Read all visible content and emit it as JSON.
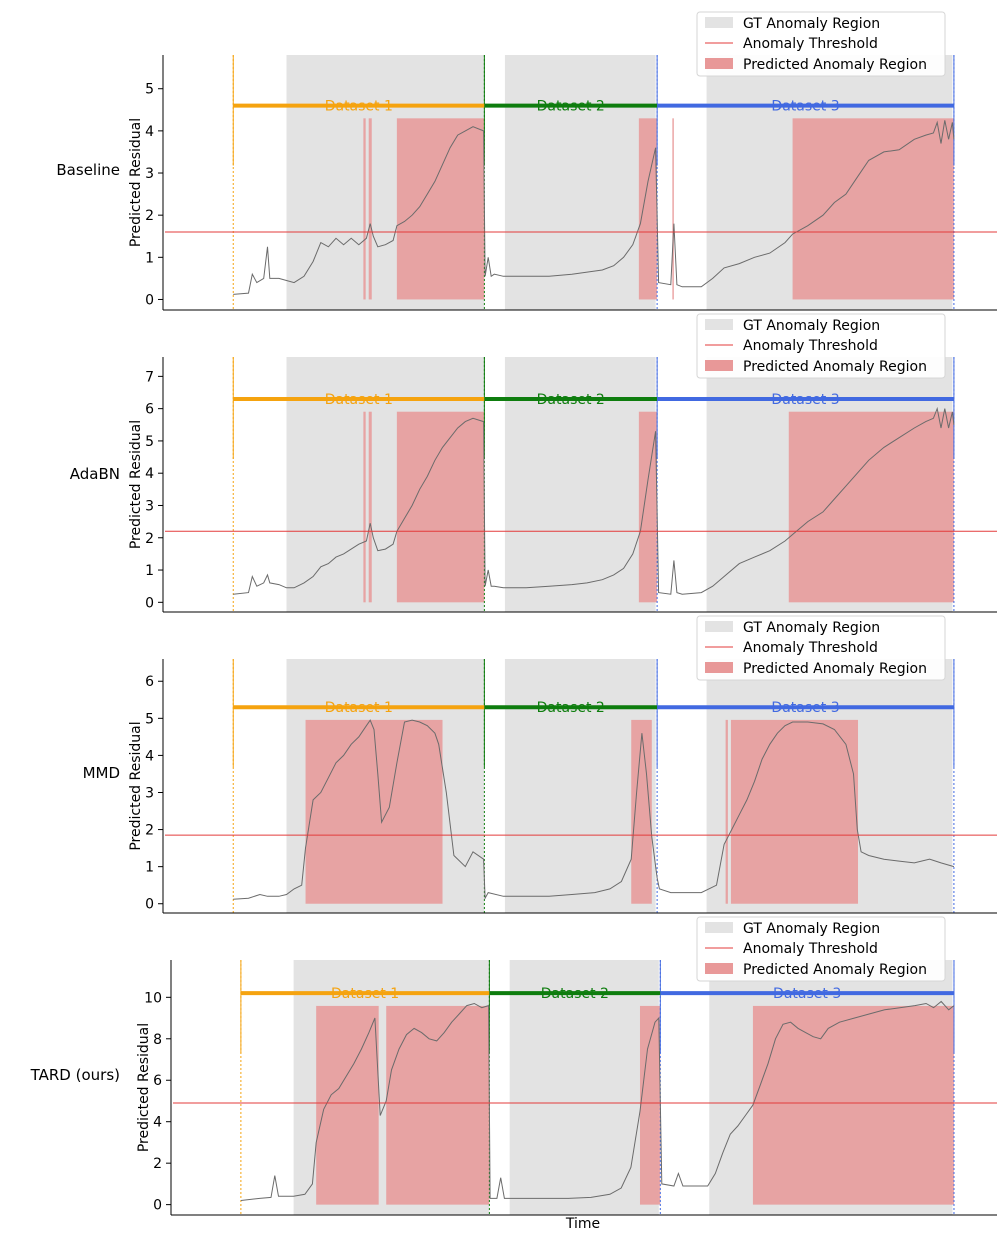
{
  "figure": {
    "xlabel": "Time"
  },
  "legend": {
    "gt": "GT Anomaly Region",
    "threshold": "Anomaly Threshold",
    "pred": "Predicted Anomaly Region"
  },
  "colors": {
    "dataset1": "#f5a30f",
    "dataset2": "#0e7d0e",
    "dataset3": "#4169e1",
    "gt_region": "#e3e3e3",
    "pred_region": "#e89898",
    "threshold": "#e33b3b",
    "signal": "#6b6b6b"
  },
  "chart_data": [
    {
      "type": "line",
      "method": "Baseline",
      "ylabel": "Predicted Residual",
      "ylim": [
        -0.25,
        5.8
      ],
      "yticks": [
        0,
        1,
        2,
        3,
        4,
        5
      ],
      "xlim": [
        0,
        100
      ],
      "boundaries": [
        4.5,
        37.5,
        60.2,
        99.2
      ],
      "dataset_labels": [
        "Dataset 1",
        "Dataset 2",
        "Dataset 3"
      ],
      "dataset_bar_y": 4.6,
      "threshold": 1.6,
      "gt_regions": [
        [
          11.5,
          37.5
        ],
        [
          40.2,
          60.0
        ],
        [
          66.7,
          99.0
        ]
      ],
      "pred_regions": [
        [
          21.6,
          21.9
        ],
        [
          22.3,
          22.7
        ],
        [
          26.0,
          37.5
        ],
        [
          57.8,
          60.2
        ],
        [
          62.2,
          62.4
        ],
        [
          78.0,
          99.2
        ]
      ],
      "series": [
        {
          "name": "Predicted Residual",
          "x": [
            4.5,
            6.5,
            7.0,
            7.6,
            8.5,
            9.0,
            9.3,
            10.5,
            11.5,
            12.5,
            13.8,
            15.0,
            16.0,
            17.0,
            18.0,
            19.0,
            20.0,
            21.0,
            22.0,
            22.5,
            22.9,
            23.5,
            24.5,
            25.5,
            26.0,
            27.0,
            28.0,
            29.0,
            30.0,
            31.0,
            32.0,
            33.0,
            34.0,
            35.0,
            36.0,
            37.4,
            37.6,
            38.0,
            38.4,
            38.8,
            40.0,
            43.0,
            46.0,
            49.0,
            51.0,
            53.0,
            54.5,
            55.8,
            57.0,
            58.0,
            59.0,
            60.0,
            60.4,
            62.0,
            62.4,
            62.8,
            63.5,
            66.0,
            67.5,
            69.0,
            71.0,
            73.0,
            75.0,
            77.0,
            78.0,
            80.0,
            82.0,
            83.5,
            85.0,
            86.5,
            88.0,
            90.0,
            92.0,
            94.0,
            95.5,
            96.5,
            97.0,
            97.5,
            98.0,
            98.5,
            99.0,
            99.2
          ],
          "y": [
            0.12,
            0.15,
            0.6,
            0.4,
            0.5,
            1.25,
            0.5,
            0.5,
            0.45,
            0.4,
            0.55,
            0.9,
            1.35,
            1.25,
            1.45,
            1.3,
            1.45,
            1.3,
            1.45,
            1.8,
            1.5,
            1.25,
            1.3,
            1.4,
            1.75,
            1.85,
            2.0,
            2.2,
            2.5,
            2.8,
            3.2,
            3.6,
            3.9,
            4.0,
            4.1,
            4.0,
            0.55,
            1.0,
            0.55,
            0.6,
            0.55,
            0.55,
            0.55,
            0.6,
            0.65,
            0.7,
            0.8,
            1.0,
            1.3,
            1.8,
            2.8,
            3.6,
            0.4,
            0.35,
            1.8,
            0.35,
            0.3,
            0.3,
            0.5,
            0.75,
            0.85,
            1.0,
            1.1,
            1.35,
            1.55,
            1.75,
            2.0,
            2.3,
            2.5,
            2.9,
            3.3,
            3.5,
            3.55,
            3.8,
            3.9,
            3.95,
            4.2,
            3.7,
            4.25,
            3.8,
            4.2,
            3.8
          ]
        }
      ]
    },
    {
      "type": "line",
      "method": "AdaBN",
      "ylabel": "Predicted Residual",
      "ylim": [
        -0.3,
        7.6
      ],
      "yticks": [
        0,
        1,
        2,
        3,
        4,
        5,
        6,
        7
      ],
      "xlim": [
        0,
        100
      ],
      "boundaries": [
        4.5,
        37.5,
        60.2,
        99.2
      ],
      "dataset_labels": [
        "Dataset 1",
        "Dataset 2",
        "Dataset 3"
      ],
      "dataset_bar_y": 6.3,
      "threshold": 2.2,
      "gt_regions": [
        [
          11.5,
          37.5
        ],
        [
          40.2,
          60.0
        ],
        [
          66.7,
          99.0
        ]
      ],
      "pred_regions": [
        [
          21.6,
          21.9
        ],
        [
          22.3,
          22.7
        ],
        [
          26.0,
          37.5
        ],
        [
          57.8,
          60.2
        ],
        [
          77.5,
          99.2
        ]
      ],
      "series": [
        {
          "name": "Predicted Residual",
          "x": [
            4.5,
            6.5,
            7.0,
            7.6,
            8.5,
            9.0,
            9.3,
            10.5,
            11.5,
            12.5,
            13.8,
            15.0,
            16.0,
            17.0,
            18.0,
            19.0,
            20.0,
            21.0,
            22.0,
            22.5,
            22.9,
            23.5,
            24.5,
            25.5,
            26.0,
            27.0,
            28.0,
            29.0,
            30.0,
            31.0,
            32.0,
            33.0,
            34.0,
            35.0,
            36.0,
            37.4,
            37.6,
            38.0,
            38.4,
            38.8,
            40.0,
            43.0,
            46.0,
            49.0,
            51.0,
            53.0,
            54.5,
            55.8,
            57.0,
            58.0,
            59.0,
            60.0,
            60.4,
            62.0,
            62.4,
            62.8,
            63.5,
            66.0,
            67.5,
            69.0,
            71.0,
            73.0,
            75.0,
            77.0,
            78.0,
            80.0,
            82.0,
            83.5,
            85.0,
            86.5,
            88.0,
            90.0,
            92.0,
            94.0,
            95.5,
            96.5,
            97.0,
            97.5,
            98.0,
            98.5,
            99.0,
            99.2
          ],
          "y": [
            0.25,
            0.3,
            0.8,
            0.5,
            0.6,
            0.85,
            0.6,
            0.55,
            0.45,
            0.45,
            0.6,
            0.8,
            1.1,
            1.2,
            1.4,
            1.5,
            1.65,
            1.8,
            1.9,
            2.45,
            2.0,
            1.6,
            1.65,
            1.8,
            2.2,
            2.6,
            3.0,
            3.5,
            3.9,
            4.4,
            4.8,
            5.1,
            5.4,
            5.6,
            5.7,
            5.6,
            0.5,
            1.0,
            0.5,
            0.5,
            0.45,
            0.45,
            0.5,
            0.55,
            0.6,
            0.7,
            0.85,
            1.05,
            1.5,
            2.2,
            3.8,
            5.3,
            0.3,
            0.25,
            1.3,
            0.3,
            0.25,
            0.3,
            0.5,
            0.8,
            1.2,
            1.4,
            1.6,
            1.9,
            2.1,
            2.5,
            2.8,
            3.2,
            3.6,
            4.0,
            4.4,
            4.8,
            5.1,
            5.4,
            5.6,
            5.7,
            6.0,
            5.4,
            6.0,
            5.4,
            5.9,
            5.5
          ]
        }
      ]
    },
    {
      "type": "line",
      "method": "MMD",
      "ylabel": "Predicted Residual",
      "ylim": [
        -0.25,
        6.6
      ],
      "yticks": [
        0,
        1,
        2,
        3,
        4,
        5,
        6
      ],
      "xlim": [
        0,
        100
      ],
      "boundaries": [
        4.5,
        37.5,
        60.2,
        99.2
      ],
      "dataset_labels": [
        "Dataset 1",
        "Dataset 2",
        "Dataset 3"
      ],
      "dataset_bar_y": 5.3,
      "threshold": 1.85,
      "gt_regions": [
        [
          11.5,
          37.5
        ],
        [
          40.2,
          60.0
        ],
        [
          66.7,
          99.0
        ]
      ],
      "pred_regions": [
        [
          14.0,
          32.0
        ],
        [
          56.8,
          59.5
        ],
        [
          69.2,
          69.5
        ],
        [
          69.9,
          86.6
        ]
      ],
      "series": [
        {
          "name": "Predicted Residual",
          "x": [
            4.5,
            6.5,
            8.0,
            9.0,
            10.5,
            11.5,
            12.5,
            13.5,
            14.0,
            15.0,
            16.0,
            17.0,
            18.0,
            19.0,
            20.0,
            21.0,
            22.0,
            22.5,
            23.0,
            23.5,
            24.0,
            25.0,
            26.0,
            27.0,
            28.0,
            29.0,
            30.0,
            31.0,
            31.5,
            32.5,
            33.5,
            35.0,
            36.0,
            37.4,
            37.6,
            38.0,
            40.0,
            43.0,
            46.0,
            49.0,
            52.0,
            54.0,
            55.5,
            56.8,
            57.5,
            58.2,
            58.8,
            59.5,
            60.2,
            60.5,
            62.0,
            64.0,
            66.0,
            68.0,
            69.0,
            70.0,
            71.0,
            72.0,
            73.0,
            74.0,
            75.0,
            76.0,
            77.0,
            78.0,
            80.0,
            82.0,
            83.5,
            85.0,
            86.0,
            86.5,
            87.0,
            88.0,
            90.0,
            92.0,
            94.0,
            96.0,
            97.5,
            99.2
          ],
          "y": [
            0.12,
            0.15,
            0.25,
            0.2,
            0.2,
            0.25,
            0.4,
            0.5,
            1.5,
            2.8,
            3.0,
            3.4,
            3.8,
            4.0,
            4.3,
            4.5,
            4.8,
            4.95,
            4.7,
            3.5,
            2.2,
            2.6,
            3.8,
            4.9,
            4.95,
            4.9,
            4.8,
            4.6,
            4.3,
            3.0,
            1.3,
            1.0,
            1.4,
            1.2,
            0.15,
            0.3,
            0.2,
            0.2,
            0.2,
            0.25,
            0.3,
            0.4,
            0.6,
            1.2,
            3.0,
            4.6,
            3.5,
            1.8,
            0.7,
            0.4,
            0.3,
            0.3,
            0.3,
            0.5,
            1.6,
            2.0,
            2.4,
            2.8,
            3.3,
            3.9,
            4.3,
            4.6,
            4.8,
            4.9,
            4.9,
            4.85,
            4.7,
            4.3,
            3.5,
            2.0,
            1.4,
            1.3,
            1.2,
            1.15,
            1.1,
            1.2,
            1.1,
            1.0
          ]
        }
      ]
    },
    {
      "type": "line",
      "method": "TARD (ours)",
      "ylabel": "Predicted Residual",
      "ylim": [
        -0.5,
        11.8
      ],
      "yticks": [
        0,
        2,
        4,
        6,
        8,
        10
      ],
      "xlim": [
        0,
        100
      ],
      "boundaries": [
        4.5,
        37.5,
        60.2,
        99.2
      ],
      "dataset_labels": [
        "Dataset 1",
        "Dataset 2",
        "Dataset 3"
      ],
      "dataset_bar_y": 10.2,
      "threshold": 4.9,
      "gt_regions": [
        [
          11.5,
          37.5
        ],
        [
          40.2,
          60.0
        ],
        [
          66.7,
          99.0
        ]
      ],
      "pred_regions": [
        [
          14.5,
          22.8
        ],
        [
          23.8,
          37.5
        ],
        [
          57.5,
          60.2
        ],
        [
          72.5,
          99.2
        ]
      ],
      "series": [
        {
          "name": "Predicted Residual",
          "x": [
            4.5,
            7.0,
            8.5,
            9.0,
            9.5,
            11.5,
            13.0,
            14.0,
            14.5,
            15.5,
            16.5,
            17.5,
            18.5,
            19.5,
            20.5,
            21.5,
            22.3,
            23.0,
            23.8,
            24.5,
            25.5,
            26.5,
            27.5,
            28.5,
            29.5,
            30.5,
            31.5,
            32.5,
            33.5,
            34.5,
            35.5,
            36.5,
            37.4,
            37.6,
            38.5,
            39.0,
            39.5,
            42.0,
            45.0,
            48.0,
            51.0,
            53.5,
            55.0,
            56.3,
            57.5,
            58.5,
            59.5,
            60.0,
            60.4,
            62.0,
            62.6,
            63.2,
            64.0,
            66.5,
            67.5,
            68.5,
            69.5,
            70.5,
            71.5,
            72.5,
            73.5,
            74.5,
            75.5,
            76.5,
            77.5,
            78.5,
            79.5,
            80.5,
            81.5,
            82.5,
            84.0,
            86.0,
            88.0,
            90.0,
            92.0,
            94.0,
            95.5,
            96.5,
            97.5,
            98.5,
            99.2
          ],
          "y": [
            0.2,
            0.3,
            0.35,
            1.4,
            0.4,
            0.4,
            0.5,
            1.0,
            3.0,
            4.6,
            5.3,
            5.6,
            6.2,
            6.8,
            7.5,
            8.3,
            9.0,
            4.3,
            5.0,
            6.5,
            7.5,
            8.2,
            8.5,
            8.3,
            8.0,
            7.9,
            8.3,
            8.8,
            9.2,
            9.6,
            9.7,
            9.5,
            9.6,
            0.3,
            0.3,
            1.3,
            0.3,
            0.3,
            0.3,
            0.3,
            0.35,
            0.5,
            0.8,
            1.8,
            4.5,
            7.5,
            8.8,
            9.0,
            1.0,
            0.9,
            1.5,
            0.9,
            0.9,
            0.9,
            1.5,
            2.5,
            3.4,
            3.8,
            4.3,
            4.8,
            5.8,
            6.8,
            8.0,
            8.7,
            8.8,
            8.5,
            8.3,
            8.1,
            8.0,
            8.5,
            8.8,
            9.0,
            9.2,
            9.4,
            9.5,
            9.6,
            9.7,
            9.5,
            9.8,
            9.4,
            9.6
          ]
        }
      ]
    }
  ]
}
